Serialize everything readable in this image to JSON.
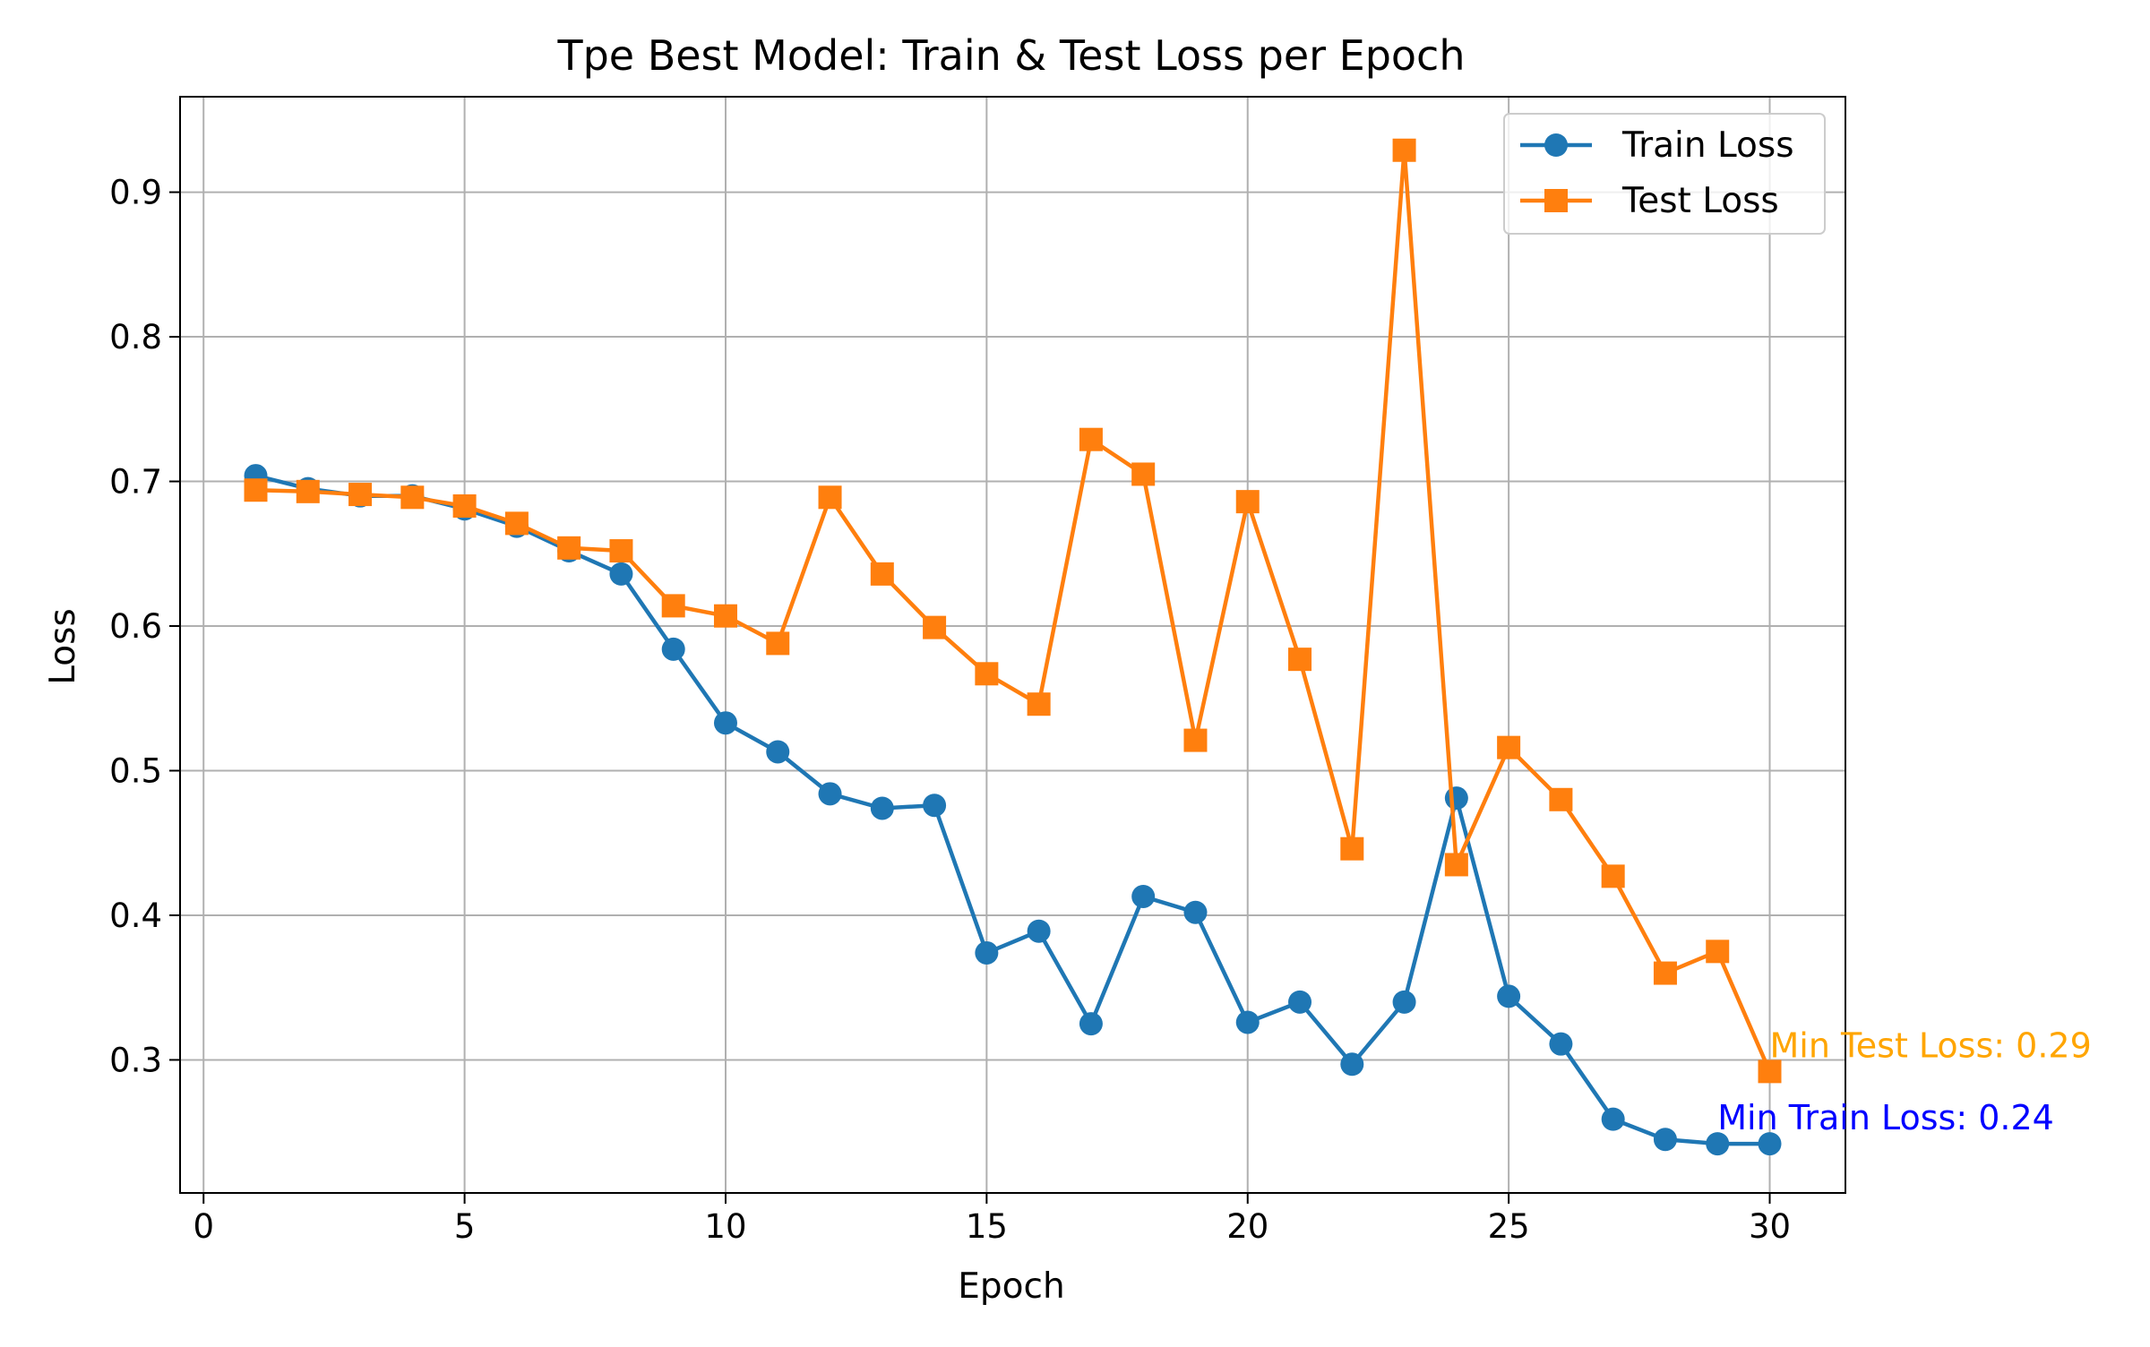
{
  "chart_data": {
    "type": "line",
    "title": "Tpe Best Model: Train & Test Loss per Epoch",
    "xlabel": "Epoch",
    "ylabel": "Loss",
    "xlim": [
      -0.45,
      31.45
    ],
    "ylim": [
      0.208,
      0.966
    ],
    "xticks": [
      0,
      5,
      10,
      15,
      20,
      25,
      30
    ],
    "yticks": [
      0.3,
      0.4,
      0.5,
      0.6,
      0.7,
      0.8,
      0.9
    ],
    "xtick_labels": [
      "0",
      "5",
      "10",
      "15",
      "20",
      "25",
      "30"
    ],
    "ytick_labels": [
      "0.3",
      "0.4",
      "0.5",
      "0.6",
      "0.7",
      "0.8",
      "0.9"
    ],
    "grid": true,
    "legend_position": "top-right",
    "x": [
      1,
      2,
      3,
      4,
      5,
      6,
      7,
      8,
      9,
      10,
      11,
      12,
      13,
      14,
      15,
      16,
      17,
      18,
      19,
      20,
      21,
      22,
      23,
      24,
      25,
      26,
      27,
      28,
      29,
      30
    ],
    "series": [
      {
        "name": "Train Loss",
        "marker": "circle",
        "color": "#1f77b4",
        "values": [
          0.704,
          0.695,
          0.69,
          0.69,
          0.681,
          0.669,
          0.652,
          0.636,
          0.584,
          0.533,
          0.513,
          0.484,
          0.474,
          0.476,
          0.374,
          0.389,
          0.325,
          0.413,
          0.402,
          0.326,
          0.34,
          0.297,
          0.34,
          0.481,
          0.344,
          0.311,
          0.259,
          0.245,
          0.242,
          0.242
        ]
      },
      {
        "name": "Test Loss",
        "marker": "square",
        "color": "#ff7f0e",
        "values": [
          0.694,
          0.693,
          0.691,
          0.689,
          0.683,
          0.671,
          0.654,
          0.652,
          0.614,
          0.607,
          0.588,
          0.689,
          0.636,
          0.599,
          0.567,
          0.546,
          0.729,
          0.705,
          0.521,
          0.686,
          0.577,
          0.446,
          0.929,
          0.435,
          0.516,
          0.48,
          0.427,
          0.36,
          0.375,
          0.292
        ]
      }
    ],
    "annotations": [
      {
        "text": "Min Test Loss: 0.29",
        "x": 30,
        "y": 0.292,
        "color": "#ffa500"
      },
      {
        "text": "Min Train Loss: 0.24",
        "x": 29,
        "y": 0.242,
        "color": "#0000ff"
      }
    ]
  }
}
